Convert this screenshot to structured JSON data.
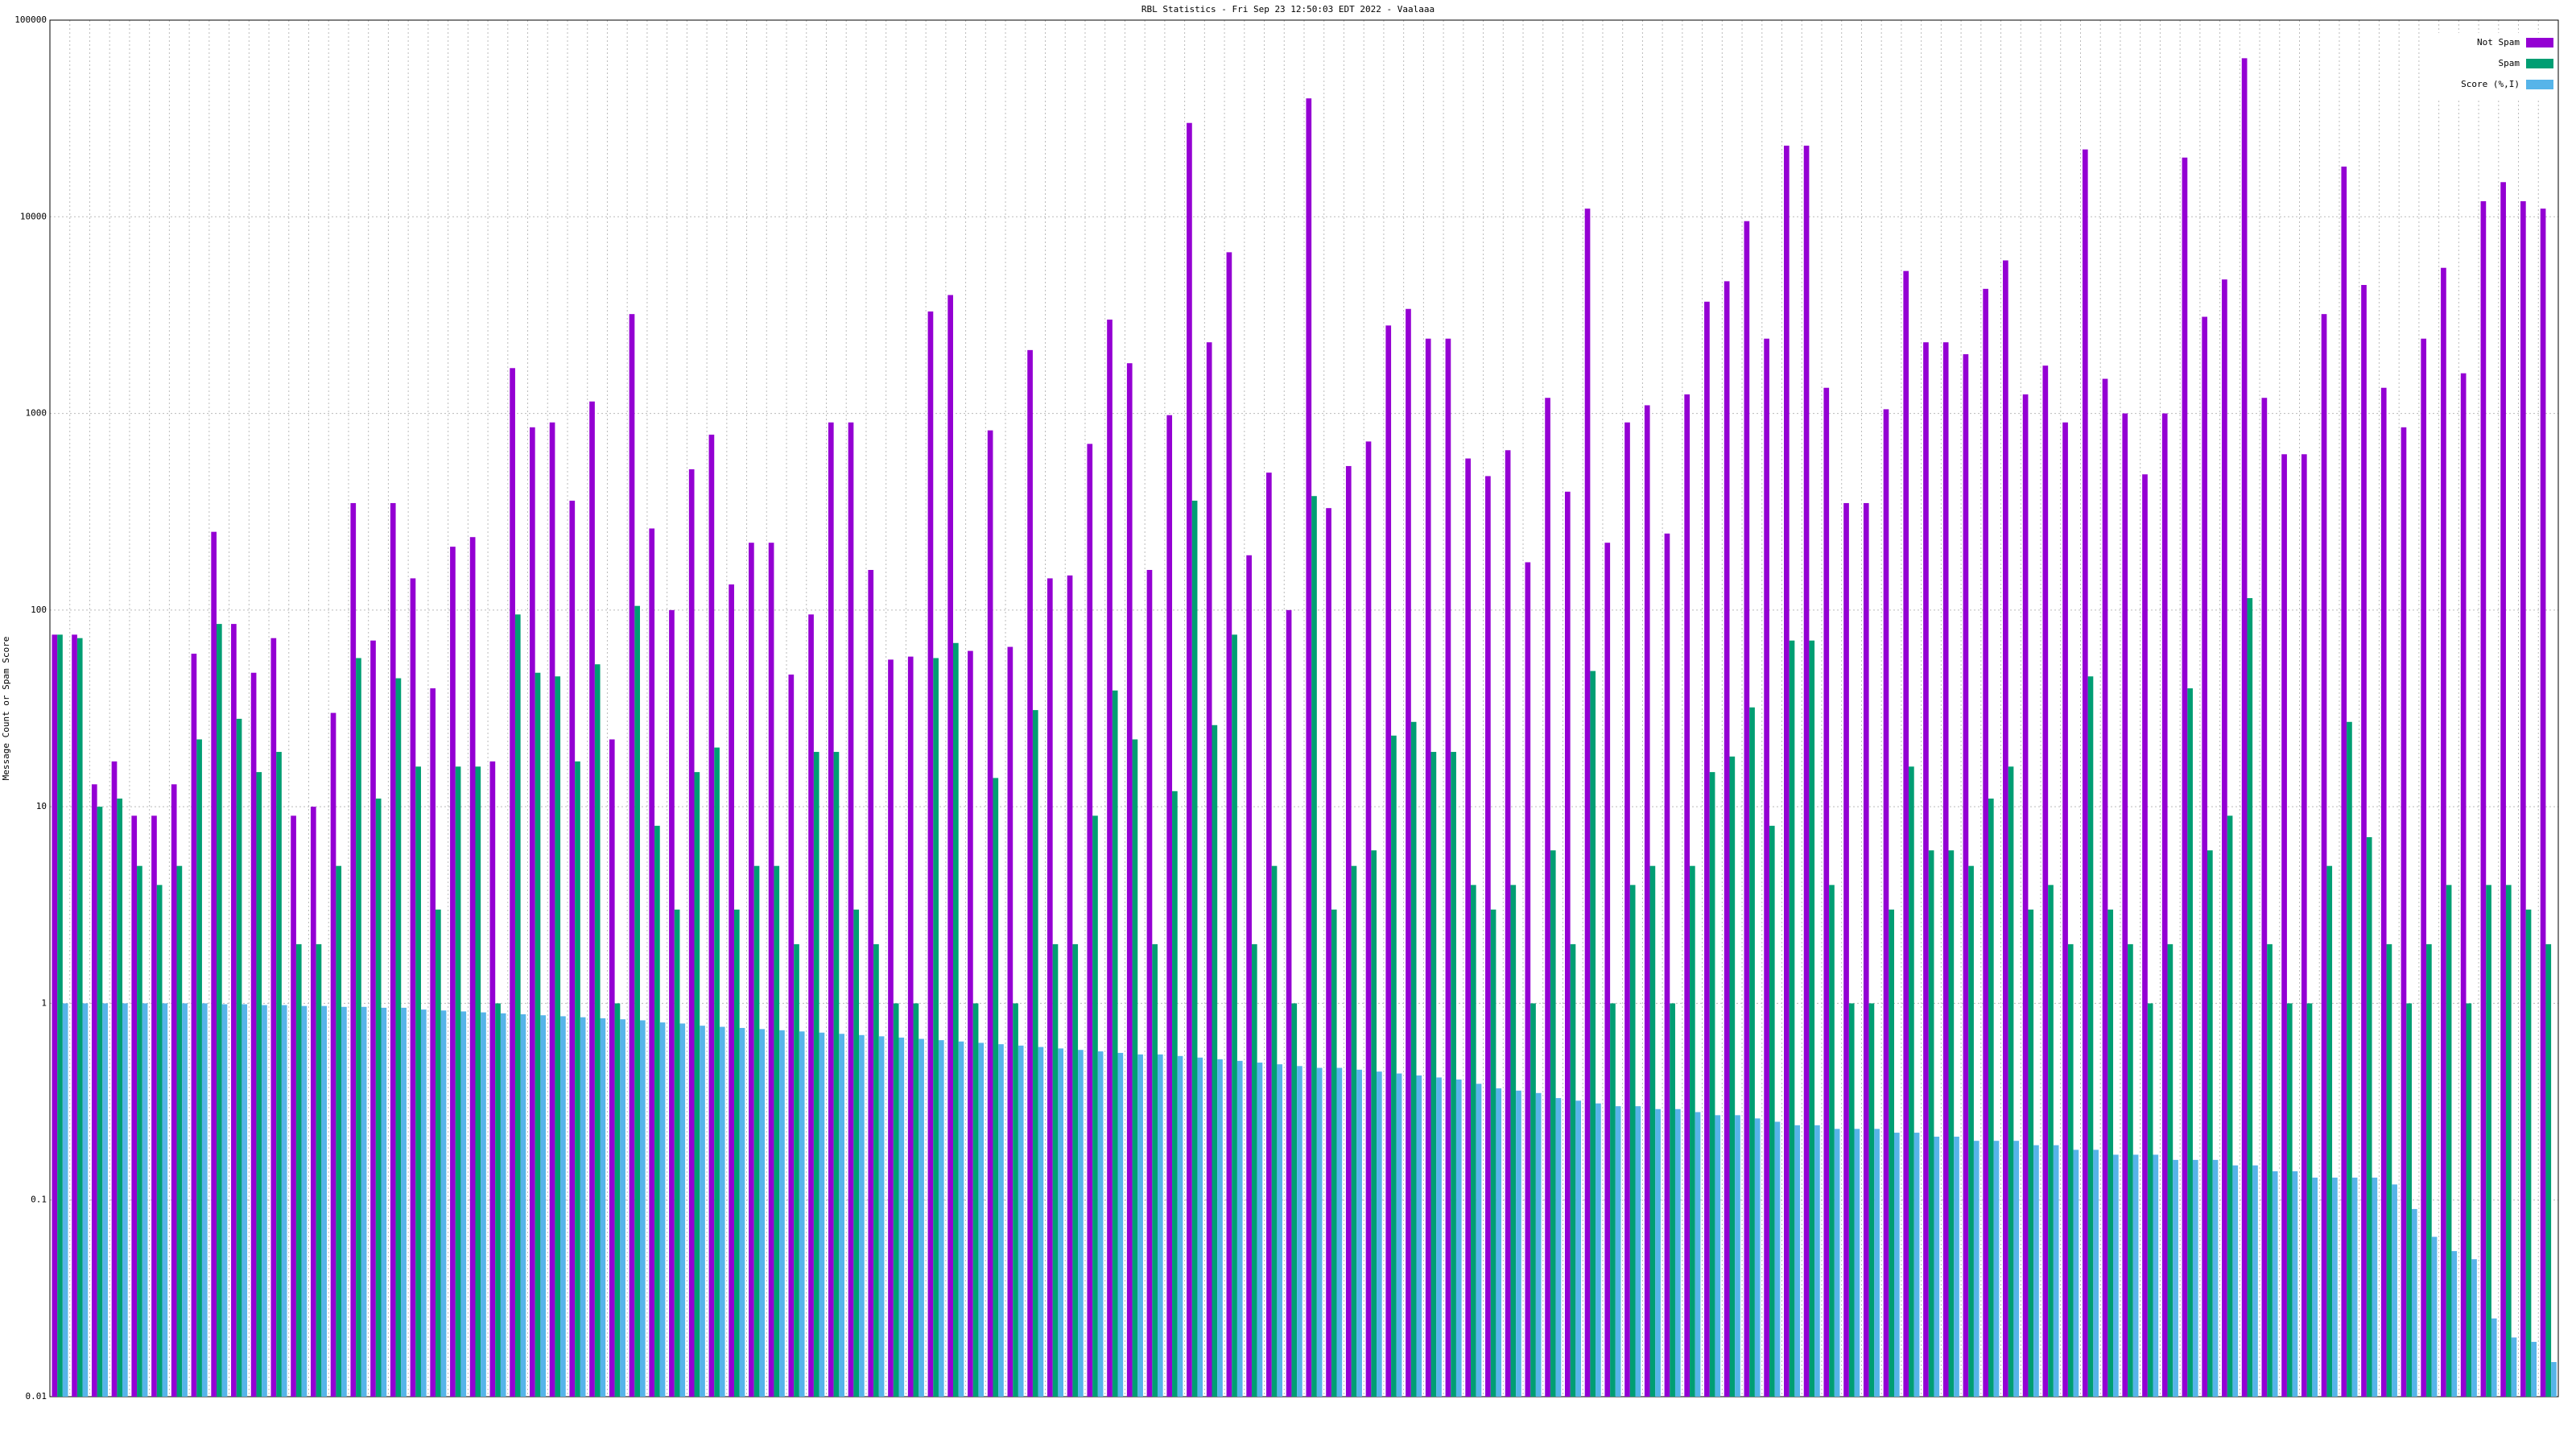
{
  "chart_data": {
    "type": "bar",
    "title": "RBL Statistics - Fri Sep 23 12:50:03 EDT 2022 - Vaalaaa",
    "y_label": "Message Count or Spam Score",
    "log_y": true,
    "grid": true,
    "legend": "top-right",
    "ylim": [
      0.01,
      100000
    ],
    "yticks": [
      0.01,
      0.1,
      1,
      10,
      100,
      1000,
      10000,
      100000
    ],
    "categories": [
      null,
      null,
      null,
      null,
      null,
      null,
      null,
      null,
      null,
      null,
      null,
      null,
      null,
      null,
      null,
      null,
      null,
      null,
      null,
      null,
      null,
      null,
      null,
      null,
      null,
      null,
      null,
      null,
      null,
      null,
      null,
      null,
      null,
      null,
      null,
      null,
      null,
      null,
      null,
      null,
      null,
      null,
      null,
      null,
      null,
      null,
      null,
      null,
      null,
      null,
      null,
      null,
      null,
      null,
      null,
      null,
      null,
      null,
      null,
      null,
      null,
      null,
      null,
      null,
      null,
      null,
      null,
      null,
      null,
      null,
      null,
      null,
      null,
      null,
      null,
      null,
      null,
      null,
      null,
      null,
      null,
      null,
      null,
      null,
      null,
      null,
      null,
      null,
      null,
      null,
      null,
      null,
      null,
      null,
      null,
      null,
      null,
      null,
      null,
      null,
      null,
      null,
      null,
      null,
      null,
      null,
      null,
      null,
      null,
      null,
      null,
      null,
      null,
      null,
      null,
      null,
      null,
      null,
      null,
      null,
      null,
      null,
      null,
      null,
      null,
      null
    ],
    "series": [
      {
        "name": "Not Spam",
        "color": "#9400d3",
        "values": [
          75,
          75,
          13,
          17,
          9,
          9,
          13,
          60,
          250,
          85,
          48,
          72,
          9,
          10,
          30,
          350,
          70,
          350,
          145,
          40,
          210,
          235,
          17,
          1700,
          850,
          900,
          360,
          1150,
          22,
          3200,
          260,
          100,
          520,
          780,
          135,
          220,
          220,
          47,
          95,
          900,
          900,
          160,
          56,
          58,
          3300,
          4000,
          62,
          820,
          65,
          2100,
          145,
          150,
          700,
          3000,
          1800,
          160,
          980,
          30000,
          2300,
          6600,
          190,
          500,
          100,
          40000,
          330,
          540,
          720,
          2800,
          3400,
          2400,
          2400,
          590,
          480,
          650,
          175,
          1200,
          400,
          11000,
          220,
          900,
          1100,
          245,
          1250,
          3700,
          4700,
          9500,
          2400,
          23000,
          23000,
          1350,
          350,
          350,
          1050,
          5300,
          2300,
          2300,
          2000,
          4300,
          6000,
          1250,
          1750,
          900,
          22000,
          1500,
          1000,
          490,
          1000,
          20000,
          3100,
          4800,
          64000,
          1200,
          620,
          620,
          3200,
          18000,
          4500,
          1350,
          850,
          2400,
          5500,
          1600,
          12000,
          15000,
          12000,
          11000
        ]
      },
      {
        "name": "Spam",
        "color": "#009e73",
        "values": [
          75,
          72,
          10,
          11,
          5,
          4,
          5,
          22,
          85,
          28,
          15,
          19,
          2,
          2,
          5,
          57,
          11,
          45,
          16,
          3,
          16,
          16,
          1,
          95,
          48,
          46,
          17,
          53,
          1,
          105,
          8,
          3,
          15,
          20,
          3,
          5,
          5,
          2,
          19,
          19,
          3,
          2,
          1,
          1,
          57,
          68,
          1,
          14,
          1,
          31,
          2,
          2,
          9,
          39,
          22,
          2,
          12,
          360,
          26,
          75,
          2,
          5,
          1,
          380,
          3,
          5,
          6,
          23,
          27,
          19,
          19,
          4,
          3,
          4,
          1,
          6,
          2,
          49,
          1,
          4,
          5,
          1,
          5,
          15,
          18,
          32,
          8,
          70,
          70,
          4,
          1,
          1,
          3,
          16,
          6,
          6,
          5,
          11,
          16,
          3,
          4,
          2,
          46,
          3,
          2,
          1,
          2,
          40,
          6,
          9,
          115,
          2,
          1,
          1,
          5,
          27,
          7,
          2,
          1,
          2,
          4,
          1,
          4,
          4,
          3,
          2
        ]
      },
      {
        "name": "Score (%,I)",
        "color": "#56b4e9",
        "values": [
          1,
          1,
          1,
          1,
          1,
          1,
          1,
          1,
          0.99,
          0.99,
          0.98,
          0.98,
          0.97,
          0.97,
          0.96,
          0.96,
          0.95,
          0.95,
          0.93,
          0.92,
          0.91,
          0.9,
          0.89,
          0.88,
          0.87,
          0.86,
          0.85,
          0.84,
          0.83,
          0.82,
          0.8,
          0.79,
          0.77,
          0.76,
          0.75,
          0.74,
          0.73,
          0.72,
          0.71,
          0.7,
          0.69,
          0.68,
          0.67,
          0.66,
          0.65,
          0.64,
          0.63,
          0.62,
          0.61,
          0.6,
          0.59,
          0.58,
          0.57,
          0.56,
          0.55,
          0.55,
          0.54,
          0.53,
          0.52,
          0.51,
          0.5,
          0.49,
          0.48,
          0.47,
          0.47,
          0.46,
          0.45,
          0.44,
          0.43,
          0.42,
          0.41,
          0.39,
          0.37,
          0.36,
          0.35,
          0.33,
          0.32,
          0.31,
          0.3,
          0.3,
          0.29,
          0.29,
          0.28,
          0.27,
          0.27,
          0.26,
          0.25,
          0.24,
          0.24,
          0.23,
          0.23,
          0.23,
          0.22,
          0.22,
          0.21,
          0.21,
          0.2,
          0.2,
          0.2,
          0.19,
          0.19,
          0.18,
          0.18,
          0.17,
          0.17,
          0.17,
          0.16,
          0.16,
          0.16,
          0.15,
          0.15,
          0.14,
          0.14,
          0.13,
          0.13,
          0.13,
          0.13,
          0.12,
          0.09,
          0.065,
          0.055,
          0.05,
          0.025,
          0.02,
          0.019,
          0.015
        ]
      }
    ]
  }
}
